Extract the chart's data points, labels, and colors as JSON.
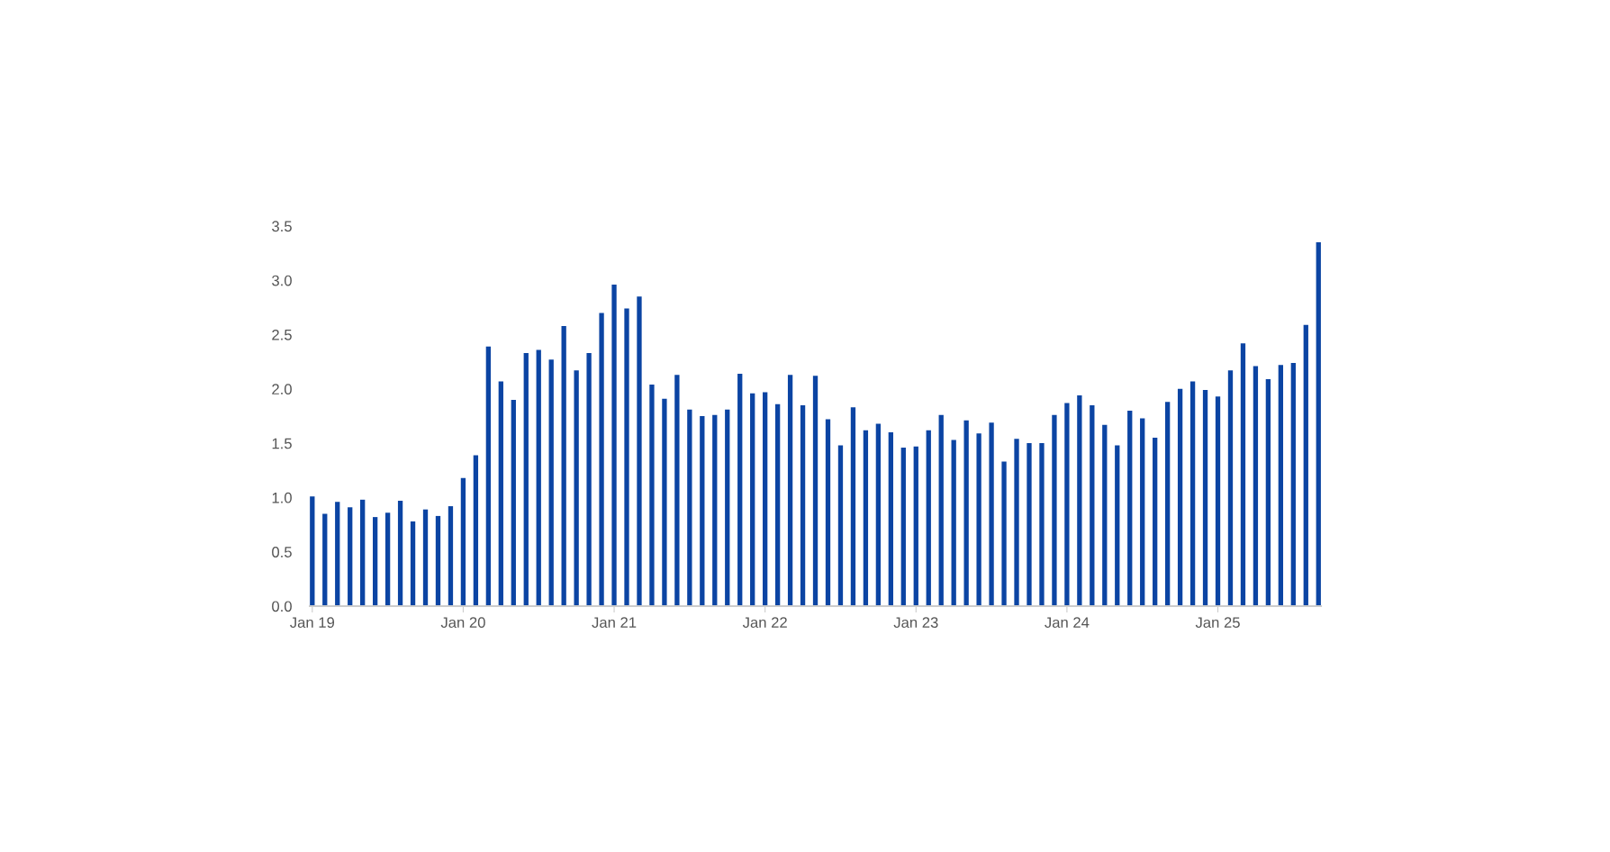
{
  "chart_data": {
    "type": "bar",
    "categories": [
      "Jan 19",
      null,
      null,
      null,
      null,
      null,
      null,
      null,
      null,
      null,
      null,
      null,
      "Jan 20",
      null,
      null,
      null,
      null,
      null,
      null,
      null,
      null,
      null,
      null,
      null,
      "Jan 21",
      null,
      null,
      null,
      null,
      null,
      null,
      null,
      null,
      null,
      null,
      null,
      "Jan 22",
      null,
      null,
      null,
      null,
      null,
      null,
      null,
      null,
      null,
      null,
      null,
      "Jan 23",
      null,
      null,
      null,
      null,
      null,
      null,
      null,
      null,
      null,
      null,
      null,
      "Jan 24",
      null,
      null,
      null,
      null,
      null,
      null,
      null,
      null,
      null,
      null,
      null,
      "Jan 25",
      null,
      null,
      null,
      null,
      null,
      null,
      null,
      null
    ],
    "values": [
      1.01,
      0.85,
      0.96,
      0.91,
      0.98,
      0.82,
      0.86,
      0.97,
      0.78,
      0.89,
      0.83,
      0.92,
      1.18,
      1.39,
      2.39,
      2.07,
      1.9,
      2.33,
      2.36,
      2.27,
      2.58,
      2.17,
      2.33,
      2.7,
      2.96,
      2.74,
      2.85,
      2.04,
      1.91,
      2.13,
      1.81,
      1.75,
      1.76,
      1.81,
      2.14,
      1.96,
      1.97,
      1.86,
      2.13,
      1.85,
      2.12,
      1.72,
      1.48,
      1.83,
      1.62,
      1.68,
      1.6,
      1.46,
      1.47,
      1.62,
      1.76,
      1.53,
      1.71,
      1.59,
      1.69,
      1.33,
      1.54,
      1.5,
      1.5,
      1.76,
      1.87,
      1.94,
      1.85,
      1.67,
      1.48,
      1.8,
      1.73,
      1.55,
      1.88,
      2.0,
      2.07,
      1.99,
      1.93,
      2.17,
      2.42,
      2.21,
      2.09,
      2.22,
      2.24,
      2.59,
      3.35
    ],
    "color": "#0b44a3",
    "ylim": [
      0,
      3.5
    ],
    "yticks": [
      {
        "value": 0,
        "label": "0.0"
      },
      {
        "value": 0.5,
        "label": "0.5"
      },
      {
        "value": 1,
        "label": "1.0"
      },
      {
        "value": 1.5,
        "label": "1.5"
      },
      {
        "value": 2,
        "label": "2.0"
      },
      {
        "value": 2.5,
        "label": "2.5"
      },
      {
        "value": 3,
        "label": "3.0"
      },
      {
        "value": 3.5,
        "label": "3.5"
      }
    ],
    "grid": false,
    "legend": false
  }
}
